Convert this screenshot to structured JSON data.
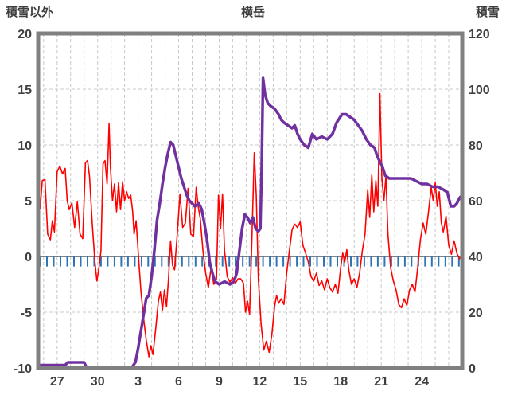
{
  "header": {
    "left_axis_title": "積雪以外",
    "chart_title": "横岳",
    "right_axis_title": "積雪"
  },
  "chart_data": {
    "type": "line",
    "title": "横岳",
    "style": {
      "grid_color": "#c8c8c8",
      "zero_line_color": "#595959",
      "frame_color": "#808080",
      "text_color": "#3f3f3f",
      "background": "#ffffff"
    },
    "left_axis": {
      "label": "積雪以外",
      "min": -10,
      "max": 20,
      "ticks": [
        20,
        15,
        10,
        5,
        0,
        -5,
        -10
      ],
      "gridlines": [
        15,
        10,
        5,
        -5
      ]
    },
    "right_axis": {
      "label": "積雪",
      "min": 0,
      "max": 120,
      "ticks": [
        120,
        100,
        80,
        60,
        40,
        20,
        0
      ]
    },
    "x_axis": {
      "labels": [
        "27",
        "30",
        "3",
        "6",
        "9",
        "12",
        "15",
        "18",
        "21",
        "24"
      ],
      "domain": [
        0,
        31.4
      ],
      "label_start_t": 1.4,
      "label_step_t": 3,
      "gridline_start_t": 0.4,
      "gridline_step_t": 1
    },
    "axis_ticks": {
      "id": "blue-sub-ticks",
      "color": "#2e75b6",
      "axis": "left",
      "top": 0,
      "bottom": -0.9,
      "t_start": 0.15,
      "t_step": 0.5,
      "t_end": 31.35,
      "width": 2
    },
    "series": [
      {
        "id": "red-line-left-axis",
        "color": "#ff0000",
        "axis": "left",
        "width": 1.6,
        "points": [
          [
            0,
            5.5
          ],
          [
            0.15,
            4.3
          ],
          [
            0.3,
            6.8
          ],
          [
            0.5,
            6.9
          ],
          [
            0.7,
            2.0
          ],
          [
            0.9,
            1.5
          ],
          [
            1.05,
            3.2
          ],
          [
            1.2,
            2.2
          ],
          [
            1.4,
            7.6
          ],
          [
            1.6,
            8.1
          ],
          [
            1.8,
            7.4
          ],
          [
            2.0,
            7.9
          ],
          [
            2.15,
            5.0
          ],
          [
            2.3,
            4.2
          ],
          [
            2.5,
            4.8
          ],
          [
            2.7,
            2.6
          ],
          [
            2.9,
            4.9
          ],
          [
            3.1,
            2.0
          ],
          [
            3.3,
            1.6
          ],
          [
            3.5,
            8.4
          ],
          [
            3.65,
            8.6
          ],
          [
            3.8,
            7.2
          ],
          [
            4.0,
            3.0
          ],
          [
            4.2,
            -0.5
          ],
          [
            4.35,
            -2.2
          ],
          [
            4.5,
            -1.0
          ],
          [
            4.65,
            0.5
          ],
          [
            4.8,
            8.3
          ],
          [
            4.95,
            8.6
          ],
          [
            5.1,
            6.5
          ],
          [
            5.25,
            11.9
          ],
          [
            5.35,
            8.0
          ],
          [
            5.5,
            5.0
          ],
          [
            5.65,
            6.5
          ],
          [
            5.8,
            4.0
          ],
          [
            5.95,
            6.6
          ],
          [
            6.1,
            4.2
          ],
          [
            6.25,
            6.7
          ],
          [
            6.4,
            5.0
          ],
          [
            6.55,
            5.8
          ],
          [
            6.7,
            5.2
          ],
          [
            6.85,
            5.5
          ],
          [
            7.0,
            4.0
          ],
          [
            7.1,
            2.0
          ],
          [
            7.25,
            3.2
          ],
          [
            7.4,
            0.5
          ],
          [
            7.6,
            -3.0
          ],
          [
            7.8,
            -5.5
          ],
          [
            8.0,
            -7.5
          ],
          [
            8.2,
            -9.0
          ],
          [
            8.35,
            -8.0
          ],
          [
            8.5,
            -8.8
          ],
          [
            8.7,
            -6.5
          ],
          [
            8.9,
            -4.0
          ],
          [
            9.05,
            -3.2
          ],
          [
            9.2,
            -4.8
          ],
          [
            9.35,
            -3.0
          ],
          [
            9.5,
            -4.5
          ],
          [
            9.65,
            -2.0
          ],
          [
            9.8,
            1.4
          ],
          [
            9.95,
            -0.8
          ],
          [
            10.1,
            -1.2
          ],
          [
            10.3,
            2.0
          ],
          [
            10.5,
            5.6
          ],
          [
            10.7,
            2.6
          ],
          [
            10.9,
            3.0
          ],
          [
            11.1,
            6.1
          ],
          [
            11.3,
            2.0
          ],
          [
            11.5,
            1.8
          ],
          [
            11.7,
            6.2
          ],
          [
            11.85,
            4.5
          ],
          [
            12.0,
            3.4
          ],
          [
            12.2,
            0.5
          ],
          [
            12.4,
            -1.5
          ],
          [
            12.6,
            -2.8
          ],
          [
            12.8,
            -1.0
          ],
          [
            13.0,
            -2.5
          ],
          [
            13.2,
            -2.0
          ],
          [
            13.35,
            5.5
          ],
          [
            13.5,
            2.5
          ],
          [
            13.65,
            5.6
          ],
          [
            13.8,
            0.5
          ],
          [
            14.0,
            -1.8
          ],
          [
            14.2,
            -2.3
          ],
          [
            14.4,
            -1.9
          ],
          [
            14.6,
            -2.4
          ],
          [
            14.8,
            -2.0
          ],
          [
            15.0,
            -2.0
          ],
          [
            15.2,
            -2.4
          ],
          [
            15.35,
            -5.0
          ],
          [
            15.5,
            -4.0
          ],
          [
            15.65,
            -5.2
          ],
          [
            15.8,
            0.5
          ],
          [
            16.0,
            9.3
          ],
          [
            16.15,
            5.5
          ],
          [
            16.3,
            -2.0
          ],
          [
            16.5,
            -6.0
          ],
          [
            16.7,
            -8.4
          ],
          [
            16.9,
            -7.6
          ],
          [
            17.1,
            -8.6
          ],
          [
            17.3,
            -7.0
          ],
          [
            17.5,
            -4.5
          ],
          [
            17.65,
            -3.5
          ],
          [
            17.8,
            -4.2
          ],
          [
            18.0,
            -3.8
          ],
          [
            18.2,
            -4.3
          ],
          [
            18.4,
            -1.5
          ],
          [
            18.6,
            0.5
          ],
          [
            18.8,
            2.4
          ],
          [
            19.0,
            2.9
          ],
          [
            19.2,
            2.6
          ],
          [
            19.4,
            3.1
          ],
          [
            19.6,
            1.0
          ],
          [
            19.8,
            0.3
          ],
          [
            20.0,
            -0.5
          ],
          [
            20.2,
            -1.8
          ],
          [
            20.4,
            -2.2
          ],
          [
            20.6,
            -1.5
          ],
          [
            20.8,
            -2.6
          ],
          [
            21.0,
            -2.2
          ],
          [
            21.2,
            -3.0
          ],
          [
            21.4,
            -2.0
          ],
          [
            21.6,
            -2.8
          ],
          [
            21.8,
            -3.2
          ],
          [
            22.0,
            -2.5
          ],
          [
            22.2,
            -3.3
          ],
          [
            22.4,
            -1.0
          ],
          [
            22.55,
            0.3
          ],
          [
            22.7,
            -0.5
          ],
          [
            22.85,
            0.6
          ],
          [
            23.0,
            -1.2
          ],
          [
            23.2,
            -2.5
          ],
          [
            23.4,
            -2.0
          ],
          [
            23.6,
            -2.8
          ],
          [
            23.8,
            -1.5
          ],
          [
            24.0,
            0.5
          ],
          [
            24.2,
            2.0
          ],
          [
            24.4,
            6.0
          ],
          [
            24.55,
            3.5
          ],
          [
            24.7,
            7.3
          ],
          [
            24.85,
            4.0
          ],
          [
            25.0,
            6.8
          ],
          [
            25.15,
            4.5
          ],
          [
            25.3,
            14.6
          ],
          [
            25.45,
            7.0
          ],
          [
            25.6,
            5.0
          ],
          [
            25.75,
            7.2
          ],
          [
            25.9,
            2.0
          ],
          [
            26.1,
            -1.0
          ],
          [
            26.3,
            -2.2
          ],
          [
            26.5,
            -3.0
          ],
          [
            26.7,
            -4.3
          ],
          [
            26.9,
            -4.6
          ],
          [
            27.1,
            -3.8
          ],
          [
            27.3,
            -4.4
          ],
          [
            27.5,
            -3.0
          ],
          [
            27.7,
            -2.5
          ],
          [
            27.9,
            -3.2
          ],
          [
            28.1,
            -1.0
          ],
          [
            28.3,
            1.5
          ],
          [
            28.5,
            3.0
          ],
          [
            28.7,
            2.0
          ],
          [
            28.9,
            4.0
          ],
          [
            29.1,
            6.2
          ],
          [
            29.25,
            5.0
          ],
          [
            29.4,
            6.6
          ],
          [
            29.55,
            4.5
          ],
          [
            29.7,
            5.8
          ],
          [
            29.85,
            3.0
          ],
          [
            30.0,
            2.2
          ],
          [
            30.2,
            3.6
          ],
          [
            30.4,
            1.0
          ],
          [
            30.6,
            0.2
          ],
          [
            30.8,
            1.4
          ],
          [
            31.0,
            0.3
          ],
          [
            31.2,
            -0.2
          ],
          [
            31.4,
            0.0
          ]
        ]
      },
      {
        "id": "purple-snow-depth-line-right-axis",
        "color": "#7030a0",
        "axis": "right",
        "width": 3.5,
        "points": [
          [
            0,
            1
          ],
          [
            2.0,
            1
          ],
          [
            2.2,
            2
          ],
          [
            3.4,
            2
          ],
          [
            3.6,
            0
          ],
          [
            6.9,
            0
          ],
          [
            7.2,
            2
          ],
          [
            7.4,
            7
          ],
          [
            7.6,
            13
          ],
          [
            7.8,
            19
          ],
          [
            8.0,
            25
          ],
          [
            8.2,
            26
          ],
          [
            8.4,
            33
          ],
          [
            8.6,
            42
          ],
          [
            8.8,
            53
          ],
          [
            9.0,
            59
          ],
          [
            9.2,
            66
          ],
          [
            9.4,
            72
          ],
          [
            9.6,
            77
          ],
          [
            9.8,
            81
          ],
          [
            10.0,
            80
          ],
          [
            10.2,
            76
          ],
          [
            10.4,
            72
          ],
          [
            10.6,
            68
          ],
          [
            10.8,
            65
          ],
          [
            11.0,
            62
          ],
          [
            11.2,
            60
          ],
          [
            11.4,
            59
          ],
          [
            11.6,
            58
          ],
          [
            11.9,
            59
          ],
          [
            12.1,
            57
          ],
          [
            12.3,
            52
          ],
          [
            12.5,
            46
          ],
          [
            12.7,
            38
          ],
          [
            12.9,
            34
          ],
          [
            13.1,
            31
          ],
          [
            13.4,
            30
          ],
          [
            13.8,
            31
          ],
          [
            14.2,
            30
          ],
          [
            14.5,
            31
          ],
          [
            14.7,
            34
          ],
          [
            14.9,
            42
          ],
          [
            15.1,
            50
          ],
          [
            15.3,
            55
          ],
          [
            15.5,
            54
          ],
          [
            15.7,
            52
          ],
          [
            15.9,
            54
          ],
          [
            16.1,
            50
          ],
          [
            16.3,
            49
          ],
          [
            16.45,
            50
          ],
          [
            16.55,
            72
          ],
          [
            16.65,
            104
          ],
          [
            16.8,
            98
          ],
          [
            17.0,
            95
          ],
          [
            17.2,
            94
          ],
          [
            17.5,
            93
          ],
          [
            17.8,
            91
          ],
          [
            18.0,
            89
          ],
          [
            18.2,
            88
          ],
          [
            18.5,
            87
          ],
          [
            18.8,
            86
          ],
          [
            19.0,
            87
          ],
          [
            19.2,
            84
          ],
          [
            19.4,
            82
          ],
          [
            19.7,
            80
          ],
          [
            20.0,
            79
          ],
          [
            20.3,
            84
          ],
          [
            20.6,
            82
          ],
          [
            21.0,
            83
          ],
          [
            21.4,
            82
          ],
          [
            21.8,
            84
          ],
          [
            22.1,
            88
          ],
          [
            22.5,
            91
          ],
          [
            22.8,
            91
          ],
          [
            23.1,
            90
          ],
          [
            23.4,
            89
          ],
          [
            23.7,
            87
          ],
          [
            24.0,
            85
          ],
          [
            24.3,
            82
          ],
          [
            24.6,
            80
          ],
          [
            24.9,
            79
          ],
          [
            25.1,
            76
          ],
          [
            25.3,
            74
          ],
          [
            25.5,
            72
          ],
          [
            25.7,
            69
          ],
          [
            26.0,
            68
          ],
          [
            26.4,
            68
          ],
          [
            26.8,
            68
          ],
          [
            27.2,
            68
          ],
          [
            27.6,
            68
          ],
          [
            28.0,
            67
          ],
          [
            28.4,
            66
          ],
          [
            28.8,
            66
          ],
          [
            29.2,
            65
          ],
          [
            29.6,
            65
          ],
          [
            30.0,
            64
          ],
          [
            30.3,
            63
          ],
          [
            30.55,
            58
          ],
          [
            30.8,
            58
          ],
          [
            31.0,
            59
          ],
          [
            31.2,
            61
          ],
          [
            31.4,
            62
          ]
        ]
      }
    ]
  }
}
